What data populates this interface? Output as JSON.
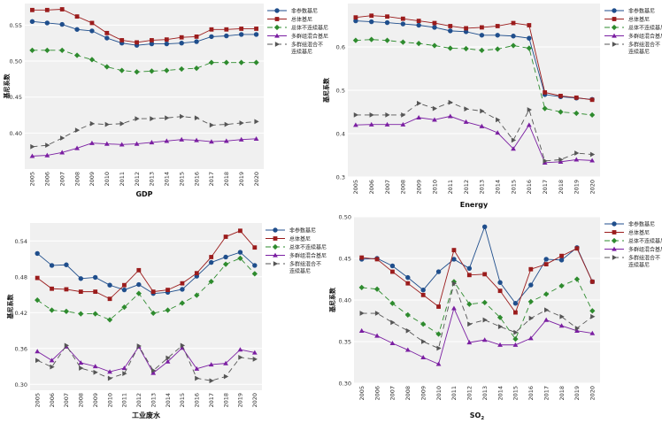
{
  "page": {
    "background": "#ffffff",
    "plot_background": "#f0f0f0",
    "grid_color": "#ffffff"
  },
  "series_styles": [
    {
      "color": "#1f4e8c",
      "marker": "circle",
      "dash": ""
    },
    {
      "color": "#9b1c1c",
      "marker": "square",
      "dash": ""
    },
    {
      "color": "#2e8b2e",
      "marker": "diamond",
      "dash": "6,4"
    },
    {
      "color": "#7b1fa2",
      "marker": "triangle-up",
      "dash": ""
    },
    {
      "color": "#555555",
      "marker": "triangle-right",
      "dash": "6,4"
    }
  ],
  "chart_data": [
    {
      "type": "line",
      "title": "",
      "xlabel": "GDP",
      "ylabel": "基尼系数",
      "x": [
        "2005",
        "2006",
        "2007",
        "2008",
        "2009",
        "2010",
        "2011",
        "2012",
        "2013",
        "2014",
        "2015",
        "2016",
        "2017",
        "2018",
        "2019",
        "2020"
      ],
      "ylim": [
        0.35,
        0.58
      ],
      "yticks": [
        0.4,
        0.45,
        0.5,
        0.55
      ],
      "ytick_labels": [
        "0.40",
        "0.45",
        "0.50",
        "0.55"
      ],
      "legend": [
        "非参数基尼",
        "总体基尼",
        "总体不连续基尼",
        "多群组混合基尼",
        "多群组混合不连续基尼"
      ],
      "legend_lines": [
        [
          "非参数基尼"
        ],
        [
          "总体基尼"
        ],
        [
          "总体不连续基尼"
        ],
        [
          "多群组混合基尼"
        ],
        [
          "多群组混合不",
          "连续基尼"
        ]
      ],
      "series": [
        {
          "name": "非参数基尼",
          "values": [
            0.555,
            0.553,
            0.551,
            0.544,
            0.542,
            0.532,
            0.525,
            0.522,
            0.524,
            0.524,
            0.525,
            0.527,
            0.534,
            0.535,
            0.537,
            0.537
          ]
        },
        {
          "name": "总体基尼",
          "values": [
            0.571,
            0.571,
            0.572,
            0.562,
            0.553,
            0.539,
            0.529,
            0.526,
            0.529,
            0.53,
            0.533,
            0.534,
            0.544,
            0.544,
            0.545,
            0.545
          ]
        },
        {
          "name": "总体不连续基尼",
          "values": [
            0.515,
            0.515,
            0.515,
            0.508,
            0.502,
            0.492,
            0.487,
            0.485,
            0.486,
            0.487,
            0.489,
            0.49,
            0.498,
            0.498,
            0.498,
            0.498
          ]
        },
        {
          "name": "多群组混合基尼",
          "values": [
            0.368,
            0.369,
            0.373,
            0.379,
            0.386,
            0.385,
            0.384,
            0.385,
            0.387,
            0.389,
            0.391,
            0.39,
            0.388,
            0.389,
            0.391,
            0.392
          ]
        },
        {
          "name": "多群组混合不连续基尼",
          "values": [
            0.381,
            0.383,
            0.393,
            0.404,
            0.413,
            0.412,
            0.413,
            0.42,
            0.42,
            0.421,
            0.423,
            0.421,
            0.411,
            0.412,
            0.414,
            0.416
          ]
        }
      ]
    },
    {
      "type": "line",
      "title": "",
      "xlabel": "Energy",
      "ylabel": "基尼系数",
      "x": [
        "2005",
        "2006",
        "2007",
        "2008",
        "2009",
        "2010",
        "2011",
        "2012",
        "2013",
        "2014",
        "2015",
        "2016",
        "2017",
        "2018",
        "2019",
        "2020"
      ],
      "ylim": [
        0.3,
        0.7
      ],
      "yticks": [
        0.3,
        0.4,
        0.5,
        0.6
      ],
      "ytick_labels": [
        "0.3",
        "0.4",
        "0.5",
        "0.6"
      ],
      "legend": [
        "非参数基尼",
        "总体基尼",
        "总体不连续基尼",
        "多群组混合基尼",
        "多群组混合不连续基尼"
      ],
      "legend_lines": [
        [
          "非参数基尼"
        ],
        [
          "总体基尼"
        ],
        [
          "总体不连续基尼"
        ],
        [
          "多群组混合基尼"
        ],
        [
          "多群组混合不",
          "连续基尼"
        ]
      ],
      "series": [
        {
          "name": "非参数基尼",
          "values": [
            0.66,
            0.658,
            0.656,
            0.653,
            0.65,
            0.645,
            0.637,
            0.635,
            0.627,
            0.627,
            0.625,
            0.62,
            0.49,
            0.485,
            0.482,
            0.479
          ]
        },
        {
          "name": "总体基尼",
          "values": [
            0.668,
            0.672,
            0.67,
            0.665,
            0.66,
            0.655,
            0.648,
            0.643,
            0.645,
            0.648,
            0.655,
            0.65,
            0.495,
            0.487,
            0.483,
            0.478
          ]
        },
        {
          "name": "总体不连续基尼",
          "values": [
            0.615,
            0.617,
            0.615,
            0.611,
            0.608,
            0.603,
            0.597,
            0.596,
            0.592,
            0.595,
            0.603,
            0.597,
            0.458,
            0.45,
            0.447,
            0.443
          ]
        },
        {
          "name": "多群组混合基尼",
          "values": [
            0.42,
            0.421,
            0.421,
            0.421,
            0.437,
            0.432,
            0.44,
            0.427,
            0.417,
            0.402,
            0.365,
            0.42,
            0.333,
            0.335,
            0.34,
            0.338
          ]
        },
        {
          "name": "多群组混合不连续基尼",
          "values": [
            0.443,
            0.443,
            0.443,
            0.443,
            0.47,
            0.458,
            0.472,
            0.457,
            0.452,
            0.432,
            0.385,
            0.455,
            0.337,
            0.34,
            0.355,
            0.352
          ]
        }
      ]
    },
    {
      "type": "line",
      "title": "",
      "xlabel": "工业废水",
      "ylabel": "基尼系数",
      "x": [
        "2005",
        "2006",
        "2007",
        "2008",
        "2009",
        "2010",
        "2011",
        "2012",
        "2013",
        "2014",
        "2015",
        "2016",
        "2017",
        "2018",
        "2019",
        "2020"
      ],
      "ylim": [
        0.29,
        0.57
      ],
      "yticks": [
        0.3,
        0.36,
        0.42,
        0.48,
        0.54
      ],
      "ytick_labels": [
        "0.30",
        "0.36",
        "0.42",
        "0.48",
        "0.54"
      ],
      "legend": [
        "非参数基尼",
        "总体基尼",
        "总体不连续基尼",
        "多群组混合基尼",
        "多群组混合不连续基尼"
      ],
      "legend_lines": [
        [
          "非参数基尼"
        ],
        [
          "总体基尼"
        ],
        [
          "总体不连续基尼"
        ],
        [
          "多群组混合基尼"
        ],
        [
          "多群组混合不",
          "连续基尼"
        ]
      ],
      "series": [
        {
          "name": "非参数基尼",
          "values": [
            0.519,
            0.499,
            0.5,
            0.477,
            0.479,
            0.466,
            0.458,
            0.467,
            0.452,
            0.454,
            0.459,
            0.481,
            0.504,
            0.513,
            0.521,
            0.499
          ]
        },
        {
          "name": "总体基尼",
          "values": [
            0.478,
            0.46,
            0.459,
            0.455,
            0.455,
            0.443,
            0.466,
            0.491,
            0.455,
            0.458,
            0.469,
            0.486,
            0.513,
            0.547,
            0.557,
            0.529
          ]
        },
        {
          "name": "总体不连续基尼",
          "values": [
            0.441,
            0.424,
            0.422,
            0.418,
            0.418,
            0.408,
            0.429,
            0.452,
            0.419,
            0.424,
            0.436,
            0.449,
            0.472,
            0.501,
            0.511,
            0.485
          ]
        },
        {
          "name": "多群组混合基尼",
          "values": [
            0.355,
            0.34,
            0.363,
            0.336,
            0.33,
            0.321,
            0.327,
            0.363,
            0.319,
            0.338,
            0.361,
            0.326,
            0.333,
            0.335,
            0.358,
            0.353
          ]
        },
        {
          "name": "多群组混合不连续基尼",
          "values": [
            0.34,
            0.329,
            0.365,
            0.327,
            0.32,
            0.31,
            0.318,
            0.364,
            0.323,
            0.344,
            0.365,
            0.31,
            0.306,
            0.313,
            0.345,
            0.342
          ]
        }
      ]
    },
    {
      "type": "line",
      "title": "",
      "xlabel": "SO",
      "xlabel_sub": "2",
      "ylabel": "基尼系数",
      "x": [
        "2005",
        "2006",
        "2007",
        "2008",
        "2009",
        "2010",
        "2011",
        "2012",
        "2013",
        "2014",
        "2015",
        "2016",
        "2017",
        "2018",
        "2019",
        "2020"
      ],
      "ylim": [
        0.3,
        0.5
      ],
      "yticks": [
        0.3,
        0.35,
        0.4,
        0.45,
        0.5
      ],
      "ytick_labels": [
        "0.30",
        "0.35",
        "0.40",
        "0.45",
        "0.50"
      ],
      "legend": [
        "非参数基尼",
        "总体基尼",
        "总体不连续基尼",
        "多群组混合基尼",
        "多群组混合不连续基尼"
      ],
      "legend_lines": [
        [
          "非参数基尼"
        ],
        [
          "总体基尼"
        ],
        [
          "总体不连续基尼"
        ],
        [
          "多群组混合基尼"
        ],
        [
          "多群组混合不",
          "连续基尼"
        ]
      ],
      "series": [
        {
          "name": "非参数基尼",
          "values": [
            0.449,
            0.45,
            0.441,
            0.427,
            0.412,
            0.434,
            0.449,
            0.438,
            0.488,
            0.421,
            0.396,
            0.418,
            0.449,
            0.448,
            0.463,
            0.422
          ]
        },
        {
          "name": "总体基尼",
          "values": [
            0.451,
            0.449,
            0.434,
            0.42,
            0.406,
            0.392,
            0.46,
            0.43,
            0.431,
            0.411,
            0.385,
            0.437,
            0.443,
            0.453,
            0.462,
            0.422
          ]
        },
        {
          "name": "总体不连续基尼",
          "values": [
            0.415,
            0.413,
            0.396,
            0.382,
            0.371,
            0.359,
            0.422,
            0.395,
            0.397,
            0.379,
            0.353,
            0.398,
            0.407,
            0.417,
            0.425,
            0.387
          ]
        },
        {
          "name": "多群组混合基尼",
          "values": [
            0.363,
            0.357,
            0.348,
            0.34,
            0.331,
            0.323,
            0.39,
            0.349,
            0.352,
            0.346,
            0.346,
            0.354,
            0.376,
            0.369,
            0.363,
            0.36
          ]
        },
        {
          "name": "多群组混合不连续基尼",
          "values": [
            0.384,
            0.384,
            0.373,
            0.363,
            0.35,
            0.342,
            0.42,
            0.371,
            0.376,
            0.368,
            0.361,
            0.378,
            0.388,
            0.38,
            0.366,
            0.38
          ]
        }
      ]
    }
  ]
}
